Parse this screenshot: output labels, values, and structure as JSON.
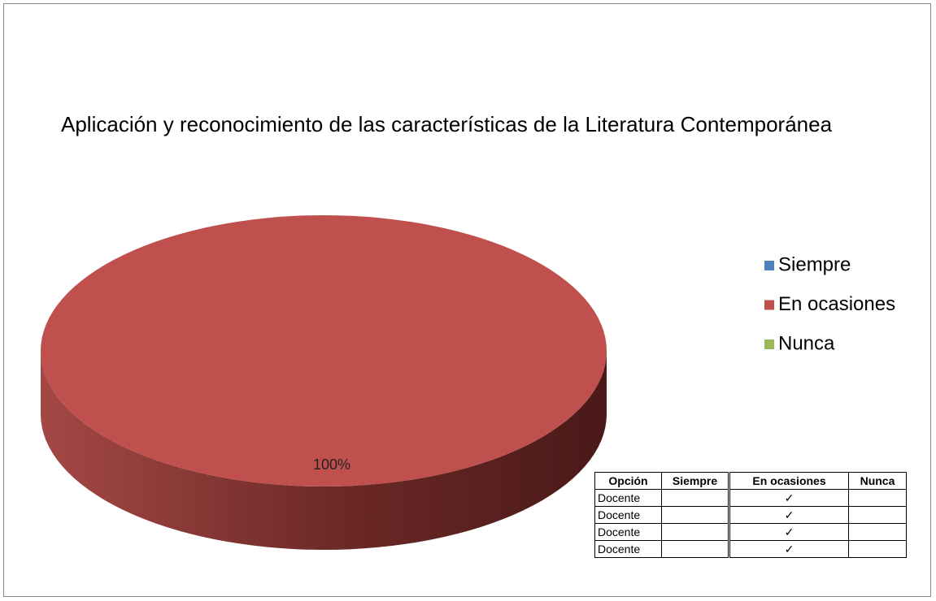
{
  "chart_data": {
    "type": "pie",
    "title": "Aplicación y reconocimiento de las características de la Literatura Contemporánea",
    "categories": [
      "Siempre",
      "En ocasiones",
      "Nunca"
    ],
    "values": [
      0,
      100,
      0
    ],
    "value_labels": [
      null,
      "100%",
      null
    ],
    "colors": [
      "#4f81bd",
      "#c0504d",
      "#9bbb59"
    ],
    "legend": "right"
  },
  "table": {
    "header": [
      "Opción",
      "Siempre",
      "En ocasiones",
      "Nunca"
    ],
    "rows": [
      [
        "Docente",
        null,
        "✓",
        null
      ],
      [
        "Docente",
        null,
        "✓",
        null
      ],
      [
        "Docente",
        null,
        "✓",
        null
      ],
      [
        "Docente",
        null,
        "✓",
        null
      ]
    ]
  }
}
